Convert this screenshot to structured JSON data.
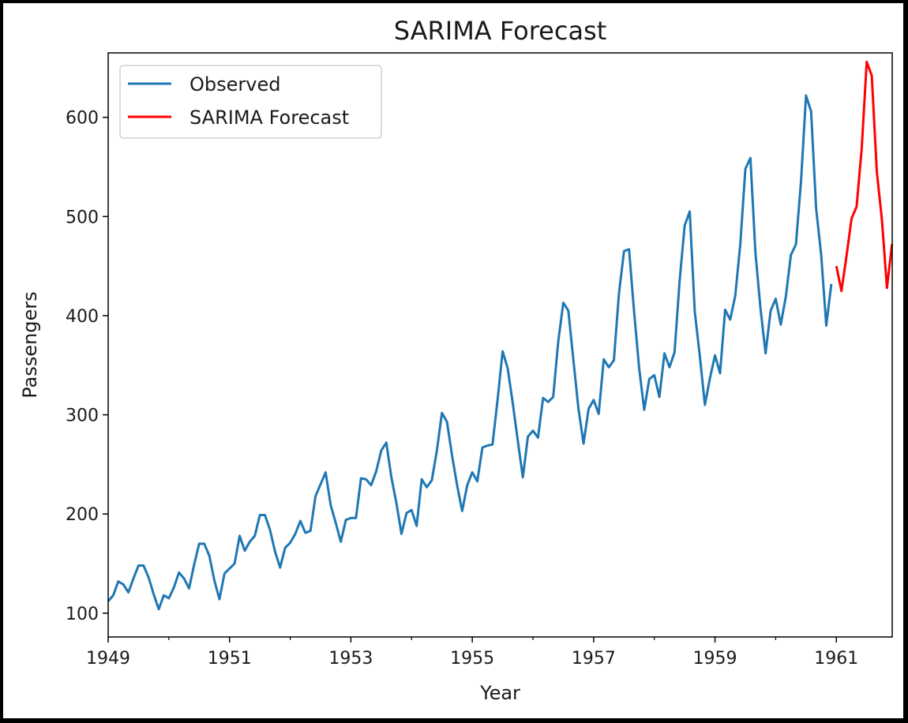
{
  "chart_data": {
    "type": "line",
    "title": "SARIMA Forecast",
    "xlabel": "Year",
    "ylabel": "Passengers",
    "xlim": [
      1949.0,
      1961.92
    ],
    "ylim": [
      76,
      665
    ],
    "xticks_major": [
      1949,
      1951,
      1953,
      1955,
      1957,
      1959,
      1961
    ],
    "xticks_minor": [
      1950,
      1952,
      1954,
      1956,
      1958,
      1960
    ],
    "yticks": [
      100,
      200,
      300,
      400,
      500,
      600
    ],
    "grid": false,
    "legend_position": "top-left",
    "series": [
      {
        "name": "Observed",
        "color": "#1f77b4",
        "start": "1949-01",
        "frequency": "monthly",
        "values": [
          112,
          118,
          132,
          129,
          121,
          135,
          148,
          148,
          136,
          119,
          104,
          118,
          115,
          126,
          141,
          135,
          125,
          149,
          170,
          170,
          158,
          133,
          114,
          140,
          145,
          150,
          178,
          163,
          172,
          178,
          199,
          199,
          184,
          162,
          146,
          166,
          171,
          180,
          193,
          181,
          183,
          218,
          230,
          242,
          209,
          191,
          172,
          194,
          196,
          196,
          236,
          235,
          229,
          243,
          264,
          272,
          237,
          211,
          180,
          201,
          204,
          188,
          235,
          227,
          234,
          264,
          302,
          293,
          259,
          229,
          203,
          229,
          242,
          233,
          267,
          269,
          270,
          315,
          364,
          347,
          312,
          274,
          237,
          278,
          284,
          277,
          317,
          313,
          318,
          374,
          413,
          405,
          355,
          306,
          271,
          306,
          315,
          301,
          356,
          348,
          355,
          422,
          465,
          467,
          404,
          347,
          305,
          336,
          340,
          318,
          362,
          348,
          363,
          435,
          491,
          505,
          404,
          359,
          310,
          337,
          360,
          342,
          406,
          396,
          420,
          472,
          548,
          559,
          463,
          407,
          362,
          405,
          417,
          391,
          419,
          461,
          472,
          535,
          622,
          606,
          508,
          461,
          390,
          432
        ]
      },
      {
        "name": "SARIMA Forecast",
        "color": "#ff0000",
        "start": "1961-01",
        "frequency": "monthly",
        "values": [
          450,
          425,
          460,
          498,
          510,
          568,
          656,
          642,
          545,
          497,
          428,
          472
        ]
      }
    ]
  }
}
